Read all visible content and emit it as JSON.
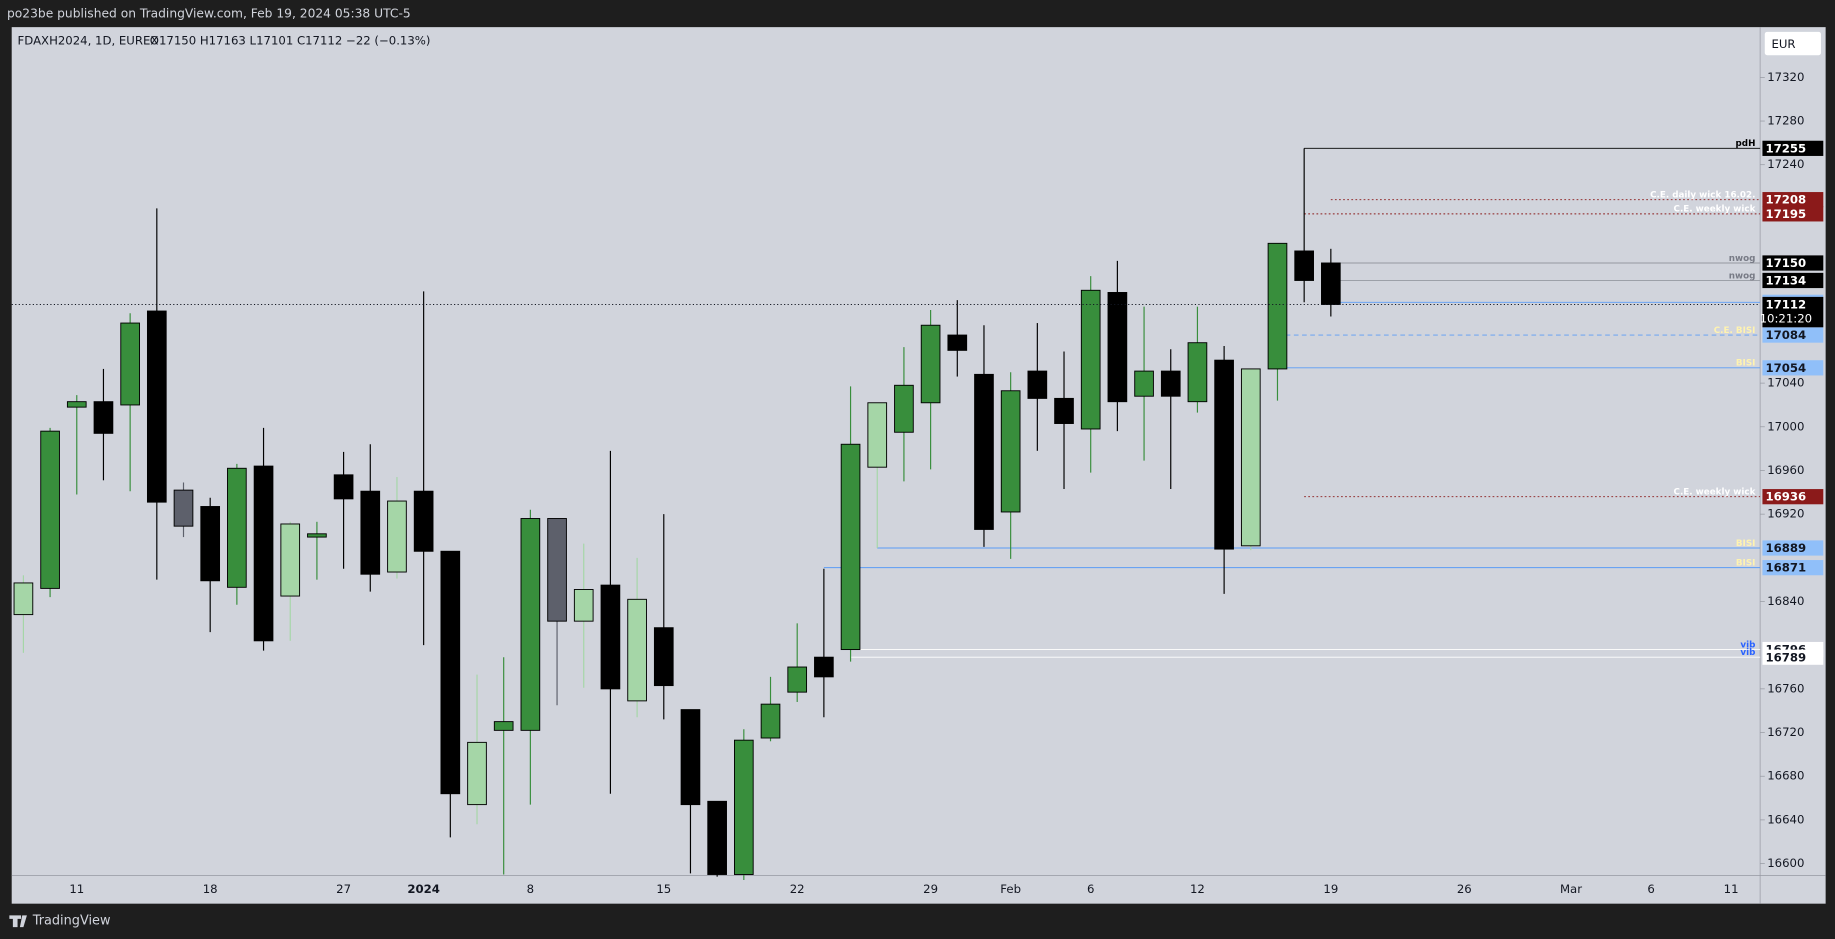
{
  "publisher_line": "po23be published on TradingView.com, Feb 19, 2024 05:38 UTC-5",
  "currency": "EUR",
  "footer_brand": "TradingView",
  "chart_data": {
    "type": "candlestick",
    "symbol": "FDAXH2024, 1D, EUREX",
    "ohlc_legend": "O17150 H17163 L17101 C17112 −22 (−0.13%)",
    "countdown": "10:21:20",
    "categories": [
      null,
      null,
      "11",
      null,
      null,
      null,
      null,
      "18",
      null,
      null,
      null,
      null,
      "27",
      null,
      null,
      "2024",
      null,
      null,
      null,
      "8",
      null,
      null,
      null,
      null,
      "15",
      null,
      null,
      null,
      null,
      "22",
      null,
      null,
      null,
      null,
      "29",
      null,
      null,
      "Feb",
      null,
      null,
      "6",
      null,
      null,
      null,
      "12",
      null,
      null,
      null,
      null,
      "19",
      null,
      null,
      null,
      null,
      "26",
      null,
      null,
      null,
      "Mar",
      null,
      null,
      "6",
      null,
      null,
      "11"
    ],
    "open": [
      16828,
      16852,
      17018,
      17023,
      17020,
      17106,
      16942,
      16927,
      16853,
      16964,
      16845,
      16899,
      16956,
      16941,
      16867,
      16941,
      16886,
      16654,
      16722,
      16722,
      16916,
      16822,
      16855,
      16749,
      16816,
      16741,
      16657,
      16590,
      16715,
      16757,
      16789,
      16796,
      16963,
      16995,
      17022,
      17084,
      17048,
      16922,
      17051,
      17026,
      16998,
      17123,
      17028,
      17051,
      17023,
      17061,
      16891,
      17053,
      17161,
      17150,
      null,
      null,
      null,
      null,
      null,
      null,
      null,
      null,
      null,
      null,
      null,
      null,
      null,
      null,
      null
    ],
    "high": [
      16864,
      16999,
      17029,
      17053,
      17104,
      17200,
      16949,
      16935,
      16966,
      16999,
      16913,
      16913,
      16977,
      16984,
      16954,
      17124,
      16886,
      16773,
      16789,
      16924,
      16916,
      16893,
      16978,
      16880,
      16920,
      16741,
      16657,
      16723,
      16771,
      16820,
      16870,
      17037,
      17022,
      17073,
      17107,
      17116,
      17093,
      17050,
      17095,
      17069,
      17138,
      17152,
      17110,
      17071,
      17110,
      17074,
      17053,
      17168,
      17255,
      17163,
      null,
      null,
      null,
      null,
      null,
      null,
      null,
      null,
      null,
      null,
      null,
      null,
      null,
      null,
      null
    ],
    "low": [
      16793,
      16844,
      16938,
      16951,
      16941,
      16860,
      16899,
      16812,
      16837,
      16795,
      16804,
      16860,
      16870,
      16849,
      16861,
      16800,
      16624,
      16636,
      16590,
      16654,
      16745,
      16761,
      16664,
      16734,
      16732,
      16591,
      16588,
      16585,
      16712,
      16748,
      16734,
      16785,
      16889,
      16950,
      16961,
      17046,
      16890,
      16879,
      16978,
      16943,
      16958,
      16996,
      16969,
      16943,
      17013,
      16847,
      16887,
      17024,
      17114,
      17101,
      null,
      null,
      null,
      null,
      null,
      null,
      null,
      null,
      null,
      null,
      null,
      null,
      null,
      null,
      null
    ],
    "close": [
      16857,
      16996,
      17023,
      16994,
      17095,
      16931,
      16909,
      16859,
      16962,
      16804,
      16911,
      16902,
      16934,
      16865,
      16932,
      16886,
      16664,
      16711,
      16730,
      16916,
      16822,
      16851,
      16760,
      16842,
      16763,
      16654,
      16590,
      16713,
      16746,
      16780,
      16771,
      16984,
      17022,
      17038,
      17093,
      17070,
      16906,
      17033,
      17026,
      17003,
      17125,
      17023,
      17051,
      17028,
      17077,
      16888,
      17053,
      17168,
      17134,
      17112,
      null,
      null,
      null,
      null,
      null,
      null,
      null,
      null,
      null,
      null,
      null,
      null,
      null,
      null,
      null
    ],
    "colors": [
      "#a5d6a7",
      "#388e3c",
      "#388e3c",
      "#000000",
      "#388e3c",
      "#000000",
      "#5d606b",
      "#000000",
      "#388e3c",
      "#000000",
      "#a5d6a7",
      "#388e3c",
      "#000000",
      "#000000",
      "#a5d6a7",
      "#000000",
      "#000000",
      "#a5d6a7",
      "#388e3c",
      "#388e3c",
      "#5d606b",
      "#a5d6a7",
      "#000000",
      "#a5d6a7",
      "#000000",
      "#000000",
      "#000000",
      "#388e3c",
      "#388e3c",
      "#388e3c",
      "#000000",
      "#388e3c",
      "#a5d6a7",
      "#388e3c",
      "#388e3c",
      "#000000",
      "#000000",
      "#388e3c",
      "#000000",
      "#000000",
      "#388e3c",
      "#000000",
      "#388e3c",
      "#000000",
      "#388e3c",
      "#000000",
      "#a5d6a7",
      "#388e3c",
      "#000000",
      "#000000",
      null,
      null,
      null,
      null,
      null,
      null,
      null,
      null,
      null,
      null,
      null,
      null,
      null,
      null,
      null
    ],
    "ylim": [
      16589,
      17366
    ],
    "yticks": [
      16600,
      16640,
      16680,
      16720,
      16760,
      16840,
      16920,
      16960,
      17000,
      17040,
      17240,
      17280,
      17320
    ],
    "grid": false,
    "levels": [
      {
        "value": 17255,
        "label": "pdH",
        "color": "#000000",
        "label_color": "#000000",
        "tag": "#000000",
        "style": "solid",
        "start": 48
      },
      {
        "value": 17208,
        "label": "C.E. daily wick 16.02.",
        "color": "#8b1a1a",
        "label_color": "#ffffff",
        "tag": "#8b1a1a",
        "style": "dotted",
        "start": 49
      },
      {
        "value": 17195,
        "label": "C.E. weekly wick",
        "color": "#8b1a1a",
        "label_color": "#ffffff",
        "tag": "#8b1a1a",
        "style": "dotted",
        "start": 48
      },
      {
        "value": 17150,
        "label": "nwog",
        "color": "#9598a1",
        "label_color": "#787b86",
        "tag": "#000000",
        "style": "solid",
        "start": 49
      },
      {
        "value": 17134,
        "label": "nwog",
        "color": "#9598a1",
        "label_color": "#787b86",
        "tag": "#000000",
        "style": "solid",
        "start": 49
      },
      {
        "value": 17114,
        "color": "#5b9cf6",
        "tag": "#90bff9",
        "style": "solid",
        "start": 49
      },
      {
        "value": 17084,
        "label": "C.E. BISI",
        "color": "#5b9cf6",
        "label_color": "#fff3b0",
        "tag": "#90bff9",
        "style": "dashed",
        "start": 47
      },
      {
        "value": 17054,
        "label": "BISI",
        "color": "#5b9cf6",
        "label_color": "#fff3b0",
        "tag": "#90bff9",
        "style": "solid",
        "start": 47
      },
      {
        "value": 16936,
        "label": "C.E. weekly wick",
        "color": "#8b1a1a",
        "label_color": "#ffffff",
        "tag": "#8b1a1a",
        "style": "dotted",
        "start": 48
      },
      {
        "value": 16889,
        "label": "BISI",
        "color": "#5b9cf6",
        "label_color": "#fff3b0",
        "tag": "#90bff9",
        "style": "solid",
        "start": 32
      },
      {
        "value": 16871,
        "label": "BISI",
        "color": "#5b9cf6",
        "label_color": "#fff3b0",
        "tag": "#90bff9",
        "style": "solid",
        "start": 30
      },
      {
        "value": 16796,
        "label": "vib",
        "color": "#ffffff",
        "label_color": "#2962ff",
        "tag": "#ffffff",
        "style": "solid",
        "start": 31
      },
      {
        "value": 16789,
        "label": "vib",
        "color": "#ffffff",
        "label_color": "#2962ff",
        "tag": "#ffffff",
        "style": "solid",
        "start": 31
      }
    ]
  }
}
